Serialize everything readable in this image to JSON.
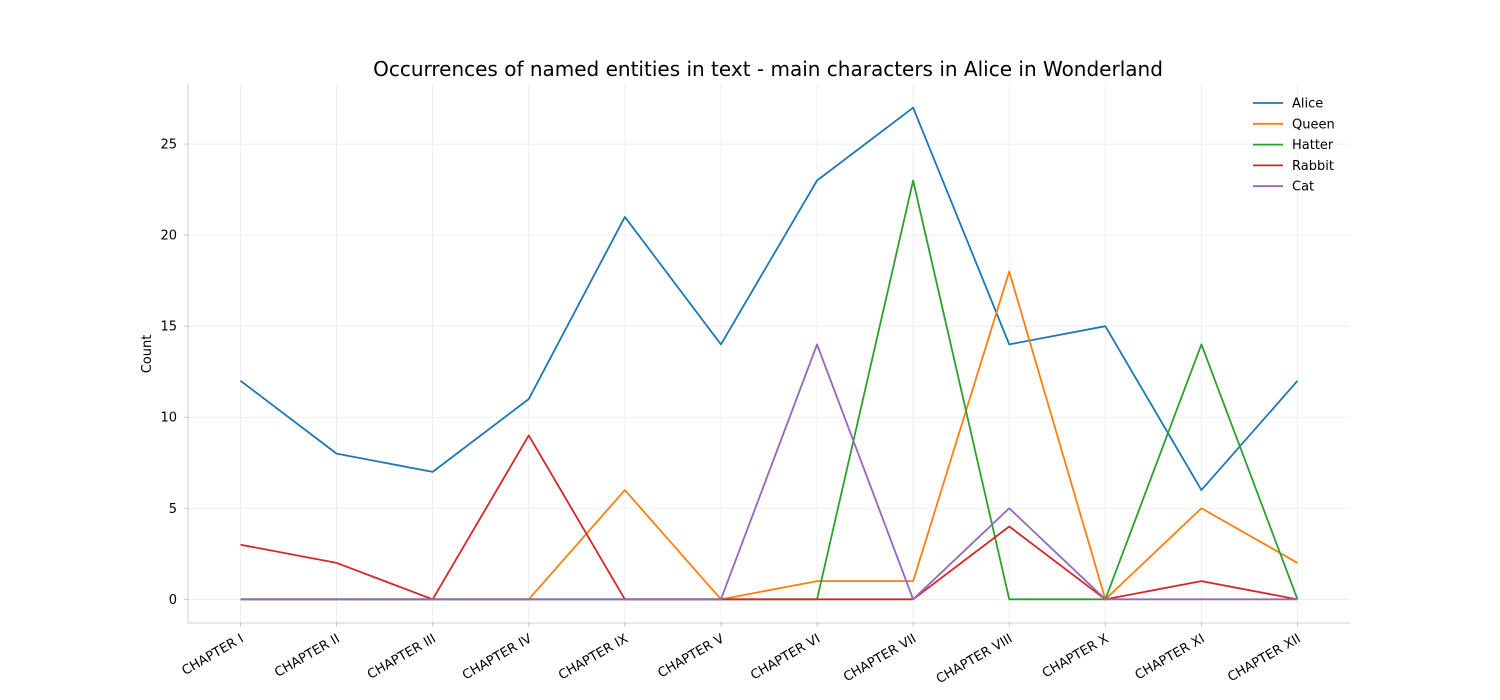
{
  "chart_data": {
    "type": "line",
    "title": "Occurrences of named entities in text - main characters in Alice in Wonderland",
    "xlabel": "",
    "ylabel": "Count",
    "categories": [
      "CHAPTER I",
      "CHAPTER II",
      "CHAPTER III",
      "CHAPTER IV",
      "CHAPTER IX",
      "CHAPTER V",
      "CHAPTER VI",
      "CHAPTER VII",
      "CHAPTER VIII",
      "CHAPTER X",
      "CHAPTER XI",
      "CHAPTER XII"
    ],
    "ylim": [
      -1.3,
      28.3
    ],
    "yticks": [
      0,
      5,
      10,
      15,
      20,
      25
    ],
    "grid": true,
    "legend_position": "top-right",
    "series": [
      {
        "name": "Alice",
        "color": "#1f77b4",
        "values": [
          12,
          8,
          7,
          11,
          21,
          14,
          23,
          27,
          14,
          15,
          6,
          12
        ]
      },
      {
        "name": "Queen",
        "color": "#ff7f0e",
        "values": [
          0,
          0,
          0,
          0,
          6,
          0,
          1,
          1,
          18,
          0,
          5,
          2
        ]
      },
      {
        "name": "Hatter",
        "color": "#2ca02c",
        "values": [
          0,
          0,
          0,
          0,
          0,
          0,
          0,
          23,
          0,
          0,
          14,
          0
        ]
      },
      {
        "name": "Rabbit",
        "color": "#d62728",
        "values": [
          3,
          2,
          0,
          9,
          0,
          0,
          0,
          0,
          4,
          0,
          1,
          0
        ]
      },
      {
        "name": "Cat",
        "color": "#9467bd",
        "values": [
          0,
          0,
          0,
          0,
          0,
          0,
          14,
          0,
          5,
          0,
          0,
          0
        ]
      }
    ]
  }
}
